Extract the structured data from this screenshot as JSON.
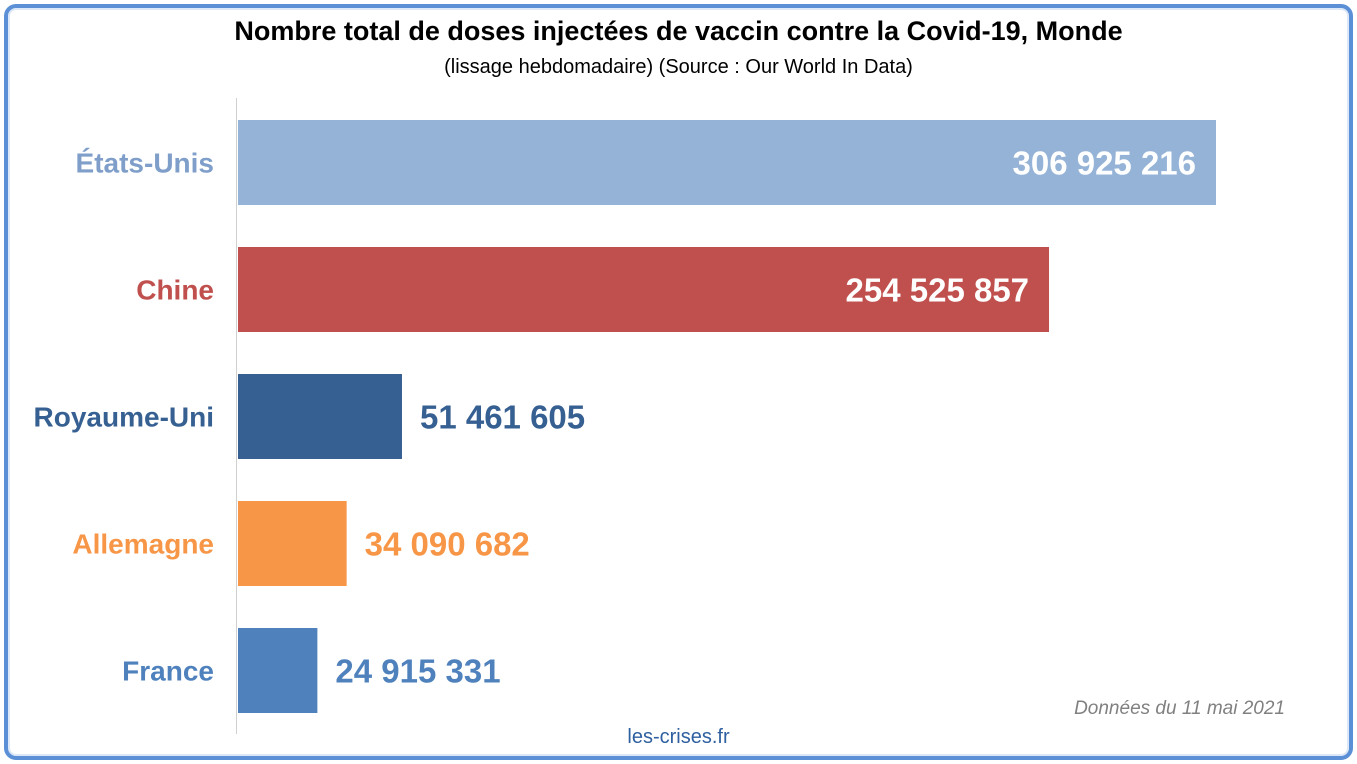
{
  "chart_data": {
    "type": "bar",
    "orientation": "horizontal",
    "title": "Nombre total de doses injectées de vaccin contre la Covid-19, Monde",
    "subtitle": "(lissage hebdomadaire) (Source : Our World In Data)",
    "xlabel": "",
    "ylabel": "",
    "categories": [
      "États-Unis",
      "Chine",
      "Royaume-Uni",
      "Allemagne",
      "France"
    ],
    "values": [
      306925216,
      254525857,
      51461605,
      34090682,
      24915331
    ],
    "value_labels": [
      "306 925 216",
      "254 525 857",
      "51 461 605",
      "34 090 682",
      "24 915 331"
    ],
    "colors": [
      "#95b3d7",
      "#c0504d",
      "#376092",
      "#f79646",
      "#4f81bd"
    ],
    "label_colors": [
      "#7f9fca",
      "#c0504d",
      "#376092",
      "#f79646",
      "#4f81bd"
    ],
    "xlim": [
      0,
      306925216
    ],
    "grid": false,
    "legend": "none",
    "note": "Données du 11 mai 2021",
    "footer": "les-crises.fr"
  }
}
